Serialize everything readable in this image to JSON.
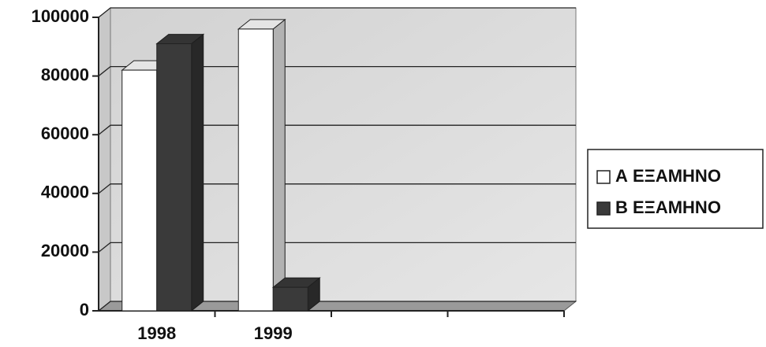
{
  "chart_data": {
    "type": "bar3d",
    "categories": [
      "1998",
      "1999",
      null,
      null
    ],
    "series": [
      {
        "name": "Α ΕΞΑΜΗΝΟ",
        "color": "#ffffff",
        "values": [
          82000,
          96000,
          null,
          null
        ]
      },
      {
        "name": "Β ΕΞΑΜΗΝΟ",
        "color": "#3a3a3a",
        "values": [
          91000,
          8000,
          null,
          null
        ]
      }
    ],
    "ylim": [
      0,
      100000
    ],
    "yticks": [
      0,
      20000,
      40000,
      60000,
      80000,
      100000
    ],
    "grid": true,
    "legend": "right"
  }
}
